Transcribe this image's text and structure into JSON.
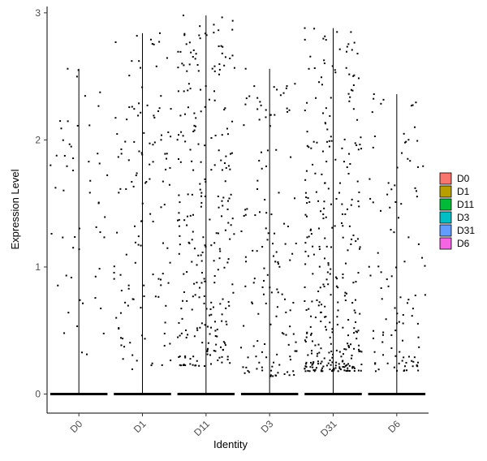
{
  "chart_data": {
    "type": "violin",
    "title": "",
    "xlabel": "Identity",
    "ylabel": "Expression Level",
    "ylim": [
      -0.15,
      3.05
    ],
    "yticks": [
      0,
      1,
      2,
      3
    ],
    "grid": false,
    "legend_position": "right",
    "categories": [
      "D0",
      "D1",
      "D11",
      "D3",
      "D31",
      "D6"
    ],
    "series": [
      {
        "name": "D0",
        "color": "#F8766D",
        "max": 2.56,
        "nonzero_count": 55,
        "nonzero_range": [
          0.28,
          2.56
        ]
      },
      {
        "name": "D1",
        "color": "#B79F00",
        "max": 2.84,
        "nonzero_count": 130,
        "nonzero_range": [
          0.18,
          2.84
        ]
      },
      {
        "name": "D11",
        "color": "#00BA38",
        "max": 2.98,
        "nonzero_count": 270,
        "nonzero_range": [
          0.22,
          2.98
        ]
      },
      {
        "name": "D3",
        "color": "#00BFC4",
        "max": 2.56,
        "nonzero_count": 140,
        "nonzero_range": [
          0.14,
          2.56
        ]
      },
      {
        "name": "D31",
        "color": "#619CFF",
        "max": 2.88,
        "nonzero_count": 330,
        "nonzero_range": [
          0.18,
          2.88
        ]
      },
      {
        "name": "D6",
        "color": "#F564E3",
        "max": 2.36,
        "nonzero_count": 110,
        "nonzero_range": [
          0.18,
          2.36
        ]
      }
    ]
  }
}
